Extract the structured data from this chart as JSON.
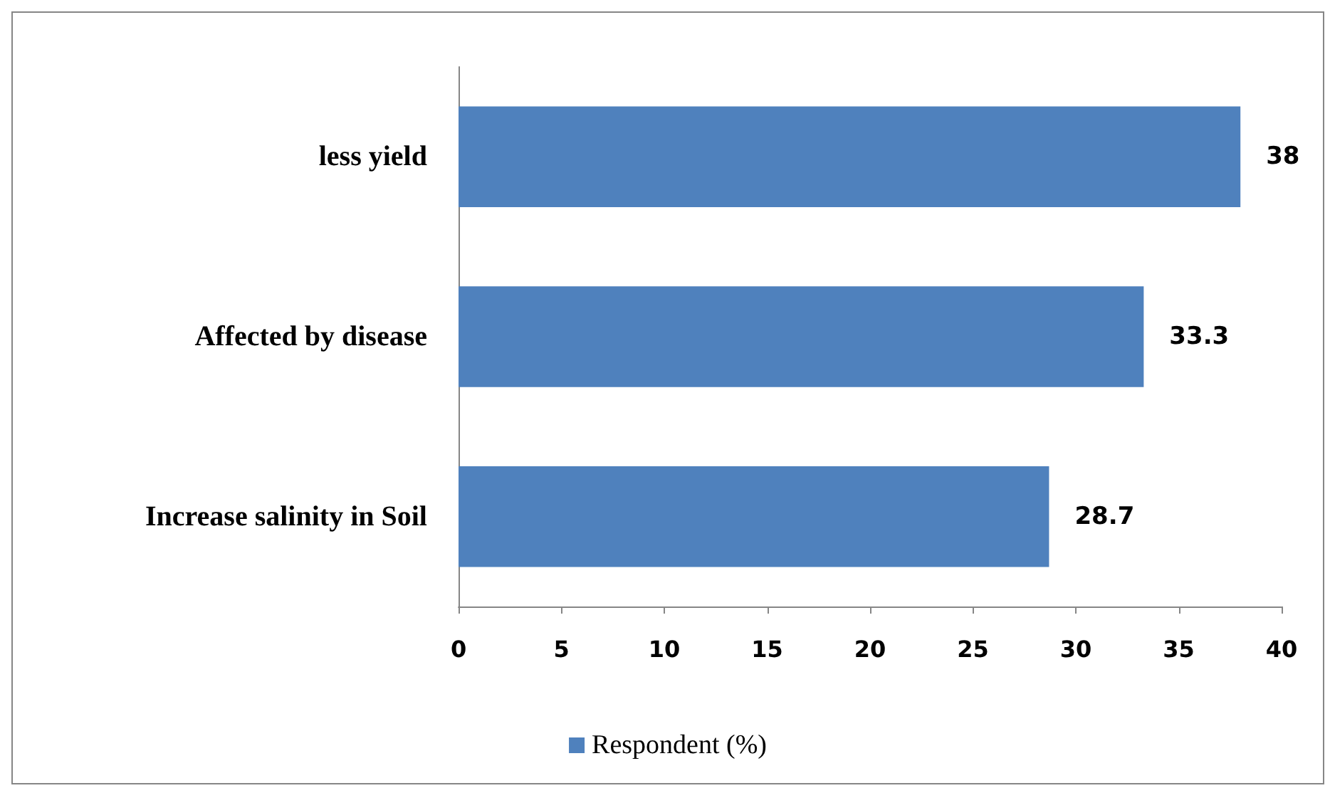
{
  "chart_data": {
    "type": "bar",
    "orientation": "horizontal",
    "categories": [
      "less yield",
      "Affected by disease",
      "Increase salinity in Soil"
    ],
    "series": [
      {
        "name": "Respondent (%)",
        "color": "#4f81bd",
        "values": [
          38,
          33.3,
          28.7
        ]
      }
    ],
    "xlim": [
      0,
      40
    ],
    "xticks": [
      0,
      5,
      10,
      15,
      20,
      25,
      30,
      35,
      40
    ],
    "data_labels": true,
    "legend": "bottom",
    "grid": false
  }
}
